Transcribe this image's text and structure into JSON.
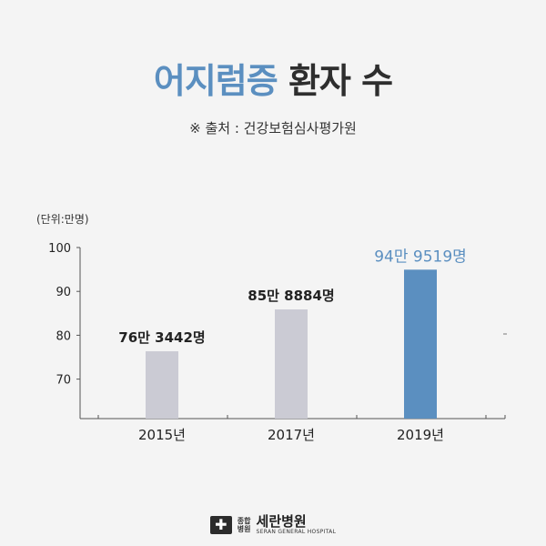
{
  "title": {
    "accent": "어지럼증",
    "rest": "환자 수"
  },
  "source": "※ 출처 : 건강보험심사평가원",
  "unit": "(단위:만명)",
  "footer": {
    "small": "종합\n병원",
    "name": "세란병원",
    "en": "SERAN GENERAL HOSPITAL"
  },
  "colors": {
    "accent": "#5b8fc0",
    "bar_gray": "#cbcbd4",
    "bar_highlight": "#5b8fc0"
  },
  "chart_data": {
    "type": "bar",
    "categories": [
      "2015년",
      "2017년",
      "2019년"
    ],
    "values": [
      76.3442,
      85.8884,
      94.9519
    ],
    "data_labels": [
      "76만 3442명",
      "85만 8884명",
      "94만 9519명"
    ],
    "highlight_index": 2,
    "yticks": [
      100,
      90,
      80,
      70
    ],
    "ylim": [
      61,
      100
    ],
    "grid": false
  }
}
